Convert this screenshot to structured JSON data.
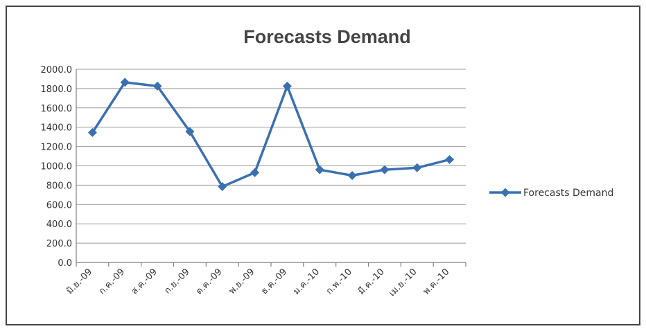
{
  "chart_data": {
    "type": "line",
    "title": "Forecasts Demand",
    "categories": [
      "มิ.ย.-09",
      "ก.ค.-09",
      "ส.ค.-09",
      "ก.ย.-09",
      "ต.ค.-09",
      "พ.ย.-09",
      "ธ.ค.-09",
      "ม.ค.-10",
      "ก.พ.-10",
      "มี.ค.-10",
      "เม.ย.-10",
      "พ.ค.-10"
    ],
    "series": [
      {
        "name": "Forecasts Demand",
        "values": [
          1345,
          1865,
          1825,
          1355,
          785,
          930,
          1825,
          960,
          900,
          960,
          980,
          1065
        ],
        "color": "#3a70b0"
      }
    ],
    "ylim": [
      0,
      2000
    ],
    "yticks": [
      "0.0",
      "200.0",
      "400.0",
      "600.0",
      "800.0",
      "1000.0",
      "1200.0",
      "1400.0",
      "1600.0",
      "1800.0",
      "2000.0"
    ],
    "grid": true,
    "legend_position": "right",
    "marker": "diamond"
  }
}
